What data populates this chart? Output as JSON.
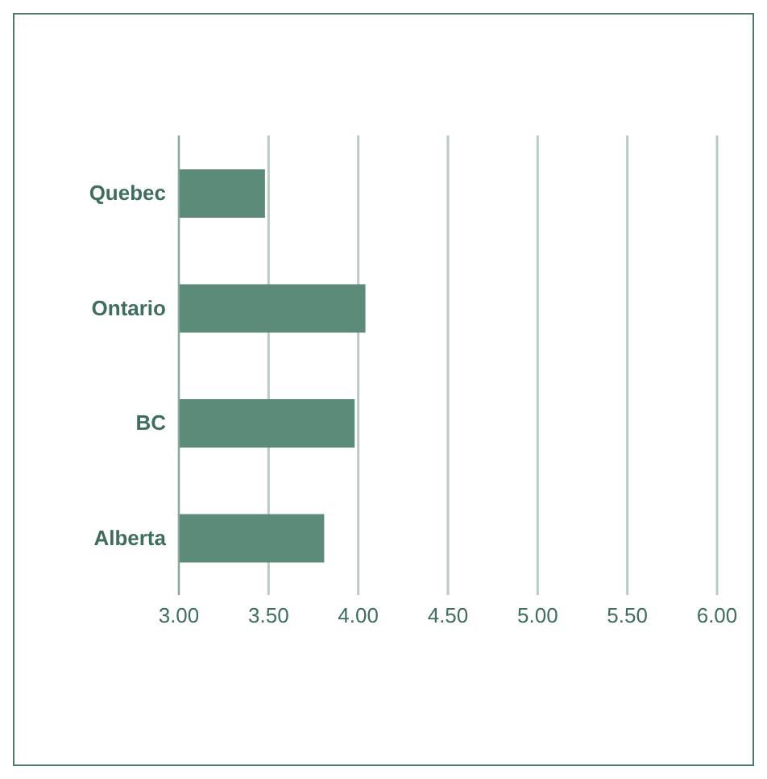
{
  "chart_data": {
    "type": "bar",
    "orientation": "horizontal",
    "categories": [
      "Quebec",
      "Ontario",
      "BC",
      "Alberta"
    ],
    "values": [
      3.48,
      4.04,
      3.98,
      3.81
    ],
    "color": "#5b8c7a",
    "xlim": [
      3,
      6
    ],
    "xticks": [
      {
        "value": 3,
        "label": "3.00"
      },
      {
        "value": 3.5,
        "label": "3.50"
      },
      {
        "value": 4,
        "label": "4.00"
      },
      {
        "value": 4.5,
        "label": "4.50"
      },
      {
        "value": 5,
        "label": "5.00"
      },
      {
        "value": 5.5,
        "label": "5.50"
      },
      {
        "value": 6,
        "label": "6.00"
      }
    ],
    "grid": "x"
  }
}
